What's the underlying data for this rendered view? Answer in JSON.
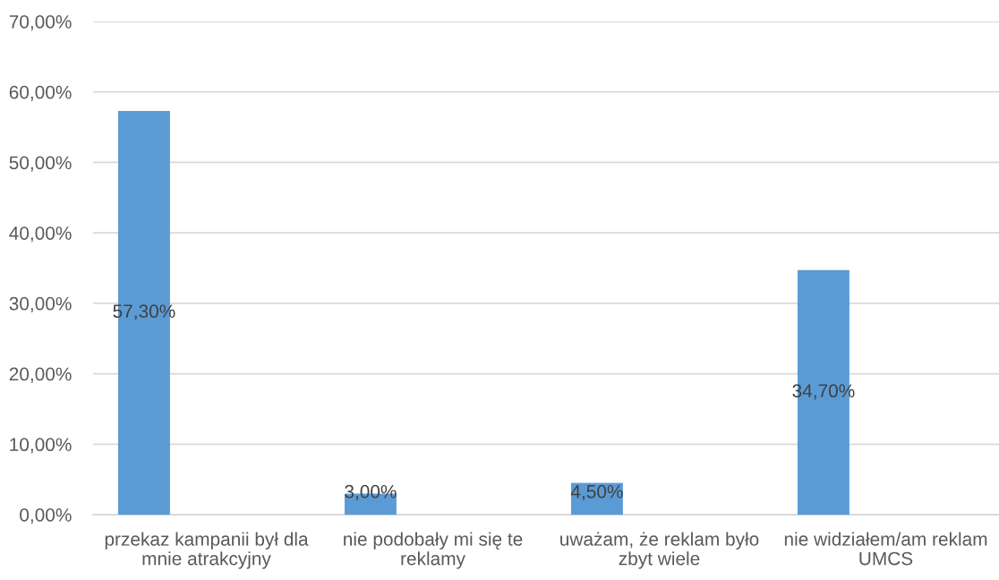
{
  "chart_data": {
    "type": "bar",
    "categories": [
      "przekaz kampanii był dla\nmnie atrakcyjny",
      "nie podobały mi się te\nreklamy",
      "uważam, że reklam było\nzbyt wiele",
      "nie widziałem/am reklam\nUMCS"
    ],
    "values": [
      57.3,
      3.0,
      4.5,
      34.7
    ],
    "color": "#5b9bd5",
    "value_labels": [
      "57,30%",
      "3,00%",
      "4,50%",
      "34,70%"
    ],
    "ylim": [
      0,
      70
    ],
    "yticks": [
      {
        "value": 0,
        "label": "0,00%"
      },
      {
        "value": 10,
        "label": "10,00%"
      },
      {
        "value": 20,
        "label": "20,00%"
      },
      {
        "value": 30,
        "label": "30,00%"
      },
      {
        "value": 40,
        "label": "40,00%"
      },
      {
        "value": 50,
        "label": "50,00%"
      },
      {
        "value": 60,
        "label": "60,00%"
      },
      {
        "value": 70,
        "label": "70,00%"
      }
    ],
    "grid": "y"
  }
}
